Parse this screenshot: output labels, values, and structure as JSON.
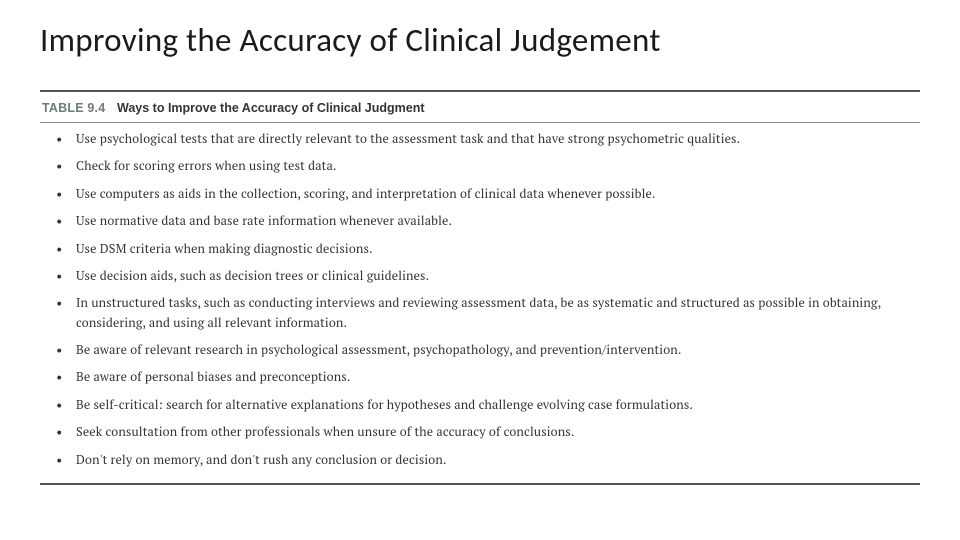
{
  "slide": {
    "title": "Improving the Accuracy of Clinical Judgement",
    "title_fontsize": 33,
    "title_color": "#1a1a1a"
  },
  "table": {
    "label": "TABLE 9.4",
    "label_color": "#6f7a7d",
    "caption": "Ways to Improve the Accuracy of Clinical Judgment",
    "caption_color": "#333333",
    "header_fontsize": 12.5,
    "border_color_outer": "#555555",
    "border_color_inner": "#888888",
    "item_fontsize": 12.5,
    "item_color": "#333333",
    "item_lineheight": 1.55,
    "item_margin_bottom": 8,
    "items": [
      "Use psychological tests that are directly relevant to the assessment task and that have strong psychometric qualities.",
      "Check for scoring errors when using test data.",
      "Use computers as aids in the collection, scoring, and interpretation of clinical data whenever possible.",
      "Use normative data and base rate information whenever available.",
      "Use DSM criteria when making diagnostic decisions.",
      "Use decision aids, such as decision trees or clinical guidelines.",
      "In unstructured tasks, such as conducting interviews and reviewing assessment data, be as systematic and structured as possible in obtaining, considering, and using all relevant information.",
      "Be aware of relevant research in psychological assessment, psychopathology, and prevention/intervention.",
      "Be aware of personal biases and preconceptions.",
      "Be self-critical: search for alternative explanations for hypotheses and challenge evolving case formulations.",
      "Seek consultation from other professionals when unsure of the accuracy of conclusions.",
      "Don't rely on memory, and don't rush any conclusion or decision."
    ]
  }
}
